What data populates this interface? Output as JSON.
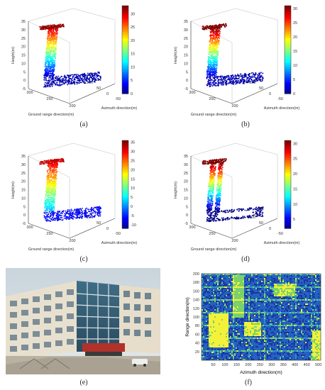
{
  "figure": {
    "panels": [
      {
        "caption": "(a)",
        "chart_data": {
          "type": "scatter",
          "zlabel": "Height(m)",
          "xlabel": "Ground range direction(m)",
          "ylabel": "Azimuth direction(m)",
          "zticks": [
            "35",
            "30",
            "25",
            "20",
            "15",
            "10",
            "5",
            "0",
            "-5"
          ],
          "xticks": [
            "300",
            "250",
            "200"
          ],
          "yticks": [
            "100",
            "50",
            "0",
            "-50"
          ],
          "colorbar_ticks": [
            "30",
            "25",
            "20",
            "15",
            "10",
            "5",
            "0"
          ],
          "colorbar_range": [
            0,
            33
          ]
        }
      },
      {
        "caption": "(b)",
        "chart_data": {
          "type": "scatter",
          "zlabel": "Height(m)",
          "xlabel": "Ground range direction(m)",
          "ylabel": "Azimuth direction(m)",
          "zticks": [
            "35",
            "30",
            "25",
            "20",
            "15",
            "10",
            "5",
            "0",
            "-5"
          ],
          "xticks": [
            "300",
            "250",
            "200"
          ],
          "yticks": [
            "100",
            "50",
            "0",
            "-50"
          ],
          "colorbar_ticks": [
            "30",
            "25",
            "20",
            "15",
            "10",
            "5",
            "0"
          ],
          "colorbar_range": [
            0,
            31
          ]
        }
      },
      {
        "caption": "(c)",
        "chart_data": {
          "type": "scatter",
          "zlabel": "Height(m)",
          "xlabel": "Ground range direction(m)",
          "ylabel": "Azimuth direction(m)",
          "zticks": [
            "35",
            "30",
            "25",
            "20",
            "15",
            "10",
            "5",
            "0",
            "-5"
          ],
          "xticks": [
            "300",
            "250",
            "200"
          ],
          "yticks": [
            "100",
            "50",
            "0",
            "-50"
          ],
          "colorbar_ticks": [
            "35",
            "30",
            "25",
            "20",
            "15",
            "10",
            "5",
            "0",
            "-5",
            "-10"
          ],
          "colorbar_range": [
            -12,
            36
          ]
        }
      },
      {
        "caption": "(d)",
        "chart_data": {
          "type": "scatter",
          "zlabel": "Height(m)",
          "xlabel": "Ground range direction(m)",
          "ylabel": "Azimuth direction(m)",
          "zticks": [
            "35",
            "30",
            "25",
            "20",
            "15",
            "10",
            "5",
            "0",
            "-5"
          ],
          "xticks": [
            "300",
            "250",
            "200"
          ],
          "yticks": [
            "100",
            "50",
            "0",
            "-50"
          ],
          "colorbar_ticks": [
            "30",
            "25",
            "20",
            "15",
            "10",
            "5"
          ],
          "colorbar_range": [
            2,
            31
          ]
        }
      }
    ],
    "photo": {
      "caption": "(e)"
    },
    "heatmap": {
      "caption": "(f)",
      "chart_data": {
        "type": "heatmap",
        "xlabel": "Azimuth direction(m)",
        "ylabel": "Range direction(m)",
        "xticks": [
          "50",
          "100",
          "150",
          "200",
          "250",
          "300",
          "350",
          "400",
          "450",
          "500"
        ],
        "yticks": [
          "20",
          "40",
          "60",
          "80",
          "100",
          "120",
          "140",
          "160",
          "180",
          "200"
        ],
        "xlim": [
          0,
          510
        ],
        "ylim": [
          200,
          0
        ]
      }
    }
  }
}
